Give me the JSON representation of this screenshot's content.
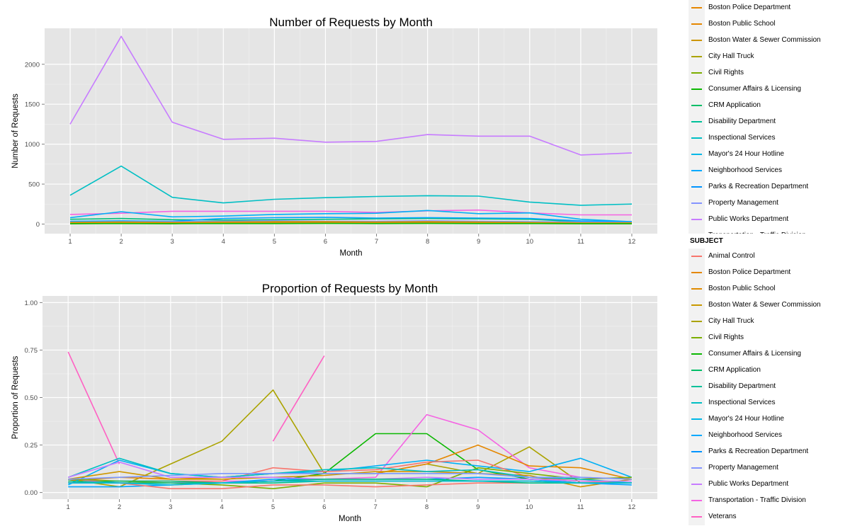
{
  "chart_data": [
    {
      "type": "line",
      "title": "Number of Requests by Month",
      "xlabel": "Month",
      "ylabel": "Number of Requests",
      "x": [
        1,
        2,
        3,
        4,
        5,
        6,
        7,
        8,
        9,
        10,
        11,
        12
      ],
      "xlim": [
        0.5,
        12.5
      ],
      "ylim": [
        -120,
        2450
      ],
      "yticks": [
        0,
        500,
        1000,
        1500,
        2000
      ],
      "ytick_labels": [
        "0",
        "500",
        "1000",
        "1500",
        "2000"
      ],
      "grid": true,
      "series": [
        {
          "name": "Public Works Department",
          "color": "#c77cff",
          "values": [
            1250,
            2350,
            1275,
            1060,
            1075,
            1025,
            1035,
            1120,
            1100,
            1100,
            865,
            890
          ]
        },
        {
          "name": "Inspectional Services",
          "color": "#00bfc4",
          "values": [
            360,
            725,
            335,
            265,
            310,
            330,
            345,
            355,
            350,
            275,
            235,
            250
          ]
        },
        {
          "name": "Transportation - Traffic Division",
          "color": "#f564e3",
          "values": [
            120,
            135,
            160,
            160,
            160,
            160,
            145,
            165,
            175,
            140,
            115,
            115
          ]
        },
        {
          "name": "Neighborhood Services",
          "color": "#00b0f6",
          "values": [
            80,
            155,
            90,
            100,
            120,
            130,
            135,
            170,
            130,
            140,
            60,
            30
          ]
        },
        {
          "name": "Disability Department",
          "color": "#00bf7d",
          "values": [
            60,
            70,
            55,
            50,
            55,
            60,
            65,
            70,
            65,
            60,
            30,
            25
          ]
        },
        {
          "name": "Parks & Recreation Department",
          "color": "#00a5ff",
          "values": [
            35,
            40,
            35,
            70,
            80,
            85,
            75,
            80,
            75,
            70,
            40,
            30
          ]
        },
        {
          "name": "Property Management",
          "color": "#7997ff",
          "values": [
            25,
            30,
            30,
            35,
            40,
            35,
            35,
            40,
            35,
            30,
            25,
            20
          ]
        },
        {
          "name": "Boston Water & Sewer Commission",
          "color": "#cd9600",
          "values": [
            20,
            25,
            20,
            25,
            30,
            30,
            25,
            30,
            25,
            20,
            15,
            15
          ]
        },
        {
          "name": "Animal Control",
          "color": "#f8766d",
          "values": [
            10,
            12,
            10,
            12,
            10,
            15,
            12,
            15,
            12,
            10,
            8,
            8
          ]
        },
        {
          "name": "Boston Police Department",
          "color": "#e58700",
          "values": [
            15,
            18,
            15,
            20,
            20,
            25,
            20,
            25,
            20,
            15,
            12,
            12
          ]
        },
        {
          "name": "Civil Rights",
          "color": "#7cae00",
          "values": [
            5,
            8,
            5,
            8,
            8,
            10,
            8,
            10,
            8,
            8,
            5,
            5
          ]
        },
        {
          "name": "Consumer Affairs & Licensing",
          "color": "#0cb702",
          "values": [
            5,
            6,
            5,
            6,
            6,
            8,
            6,
            8,
            6,
            6,
            5,
            5
          ]
        }
      ]
    },
    {
      "type": "line",
      "title": "Proportion of Requests by Month",
      "xlabel": "Month",
      "ylabel": "Proportion of Requests",
      "x": [
        1,
        2,
        3,
        4,
        5,
        6,
        7,
        8,
        9,
        10,
        11,
        12
      ],
      "xlim": [
        0.5,
        12.5
      ],
      "ylim": [
        -0.035,
        1.035
      ],
      "yticks": [
        0,
        0.25,
        0.5,
        0.75,
        1
      ],
      "ytick_labels": [
        "0.00",
        "0.25",
        "0.50",
        "0.75",
        "1.00"
      ],
      "grid": true,
      "series": [
        {
          "name": "Veterans",
          "color": "#ff61c3",
          "values": [
            0.74,
            0.15,
            null,
            null,
            0.27,
            0.72,
            null,
            null,
            null,
            null,
            null,
            null
          ]
        },
        {
          "name": "City Hall Truck",
          "color": "#aba300",
          "values": [
            0.07,
            0.03,
            0.15,
            0.27,
            0.54,
            0.1,
            0.1,
            0.15,
            0.1,
            0.24,
            0.05,
            0.05
          ]
        },
        {
          "name": "Consumer Affairs & Licensing",
          "color": "#0cb702",
          "values": [
            0.05,
            0.05,
            0.05,
            0.05,
            0.06,
            0.1,
            0.31,
            0.31,
            0.12,
            0.07,
            0.05,
            0.05
          ]
        },
        {
          "name": "Transportation - Traffic Division",
          "color": "#f564e3",
          "values": [
            0.07,
            0.05,
            0.05,
            0.06,
            0.06,
            0.07,
            0.08,
            0.41,
            0.33,
            0.13,
            0.08,
            0.07
          ]
        },
        {
          "name": "Boston Public School",
          "color": "#e58700",
          "values": [
            0.06,
            0.08,
            0.07,
            0.08,
            0.1,
            0.1,
            0.1,
            0.15,
            0.25,
            0.14,
            0.13,
            0.07
          ]
        },
        {
          "name": "Neighborhood Services",
          "color": "#00b0f6",
          "values": [
            0.04,
            0.17,
            0.1,
            0.08,
            0.1,
            0.11,
            0.14,
            0.17,
            0.14,
            0.11,
            0.18,
            0.08
          ]
        },
        {
          "name": "Boston Police Department",
          "color": "#f8766d",
          "values": [
            0.05,
            0.06,
            0.06,
            0.06,
            0.13,
            0.11,
            0.12,
            0.16,
            0.17,
            0.08,
            0.06,
            0.05
          ]
        },
        {
          "name": "Boston Water & Sewer Commission",
          "color": "#cd9600",
          "values": [
            0.07,
            0.11,
            0.07,
            0.07,
            0.08,
            0.09,
            0.11,
            0.11,
            0.1,
            0.09,
            0.03,
            0.07
          ]
        },
        {
          "name": "Civil Rights",
          "color": "#7cae00",
          "values": [
            0.07,
            0.06,
            0.05,
            0.04,
            0.02,
            0.05,
            0.05,
            0.03,
            0.13,
            0.1,
            0.07,
            0.08
          ]
        },
        {
          "name": "Inspectional Services",
          "color": "#00bfc4",
          "values": [
            0.08,
            0.18,
            0.1,
            0.08,
            0.1,
            0.12,
            0.13,
            0.11,
            0.12,
            0.08,
            0.07,
            0.05
          ]
        },
        {
          "name": "Parks & Recreation Department",
          "color": "#00a5ff",
          "values": [
            0.03,
            0.03,
            0.04,
            0.05,
            0.07,
            0.07,
            0.07,
            0.07,
            0.08,
            0.07,
            0.05,
            0.04
          ]
        },
        {
          "name": "Public Works Department",
          "color": "#c77cff",
          "values": [
            0.08,
            0.16,
            0.08,
            0.08,
            0.08,
            0.07,
            0.07,
            0.08,
            0.07,
            0.07,
            0.06,
            0.06
          ]
        },
        {
          "name": "Property Management",
          "color": "#7997ff",
          "values": [
            0.07,
            0.08,
            0.09,
            0.1,
            0.1,
            0.1,
            0.1,
            0.1,
            0.1,
            0.08,
            0.08,
            0.07
          ]
        },
        {
          "name": "Disability Department",
          "color": "#00bf7d",
          "values": [
            0.05,
            0.06,
            0.06,
            0.05,
            0.06,
            0.07,
            0.07,
            0.07,
            0.06,
            0.06,
            0.05,
            0.05
          ]
        },
        {
          "name": "Animal Control",
          "color": "#f8766d",
          "values": [
            0.05,
            0.05,
            0.02,
            0.02,
            0.04,
            0.04,
            0.03,
            0.04,
            0.05,
            0.05,
            0.05,
            0.05
          ]
        },
        {
          "name": "CRM Application",
          "color": "#00c08b",
          "values": [
            0.06,
            0.05,
            0.05,
            0.05,
            0.05,
            0.06,
            0.06,
            0.06,
            0.06,
            0.05,
            0.05,
            0.05
          ]
        },
        {
          "name": "Mayor's 24 Hour Hotline",
          "color": "#00bbdb",
          "values": [
            0.05,
            0.05,
            0.04,
            0.05,
            0.06,
            0.06,
            0.06,
            0.06,
            0.06,
            0.06,
            0.05,
            0.05
          ]
        }
      ]
    }
  ],
  "legend_top": {
    "items": [
      {
        "label": "Boston Police Department",
        "color": "#e58700"
      },
      {
        "label": "Boston Public School",
        "color": "#e58700"
      },
      {
        "label": "Boston Water & Sewer Commission",
        "color": "#cd9600"
      },
      {
        "label": "City Hall Truck",
        "color": "#aba300"
      },
      {
        "label": "Civil Rights",
        "color": "#7cae00"
      },
      {
        "label": "Consumer Affairs & Licensing",
        "color": "#0cb702"
      },
      {
        "label": "CRM Application",
        "color": "#00be67"
      },
      {
        "label": "Disability Department",
        "color": "#00c19a"
      },
      {
        "label": "Inspectional Services",
        "color": "#00bfc4"
      },
      {
        "label": "Mayor's 24 Hour Hotline",
        "color": "#00b8e7"
      },
      {
        "label": "Neighborhood Services",
        "color": "#00a9ff"
      },
      {
        "label": "Parks & Recreation Department",
        "color": "#0094ff"
      },
      {
        "label": "Property Management",
        "color": "#8494ff"
      },
      {
        "label": "Public Works Department",
        "color": "#c77cff"
      },
      {
        "label": "Transportation - Traffic Division",
        "color": "#f564e3"
      }
    ]
  },
  "legend_bottom": {
    "title": "SUBJECT",
    "items": [
      {
        "label": "Animal Control",
        "color": "#f8766d"
      },
      {
        "label": "Boston Police Department",
        "color": "#e58700"
      },
      {
        "label": "Boston Public School",
        "color": "#e08b00"
      },
      {
        "label": "Boston Water & Sewer Commission",
        "color": "#c99800"
      },
      {
        "label": "City Hall Truck",
        "color": "#aba300"
      },
      {
        "label": "Civil Rights",
        "color": "#7cae00"
      },
      {
        "label": "Consumer Affairs & Licensing",
        "color": "#0cb702"
      },
      {
        "label": "CRM Application",
        "color": "#00be67"
      },
      {
        "label": "Disability Department",
        "color": "#00c19a"
      },
      {
        "label": "Inspectional Services",
        "color": "#00bfc4"
      },
      {
        "label": "Mayor's 24 Hour Hotline",
        "color": "#00b8e7"
      },
      {
        "label": "Neighborhood Services",
        "color": "#00a9ff"
      },
      {
        "label": "Parks & Recreation Department",
        "color": "#0094ff"
      },
      {
        "label": "Property Management",
        "color": "#8494ff"
      },
      {
        "label": "Public Works Department",
        "color": "#c77cff"
      },
      {
        "label": "Transportation - Traffic Division",
        "color": "#f564e3"
      },
      {
        "label": "Veterans",
        "color": "#ff61c3"
      }
    ]
  }
}
